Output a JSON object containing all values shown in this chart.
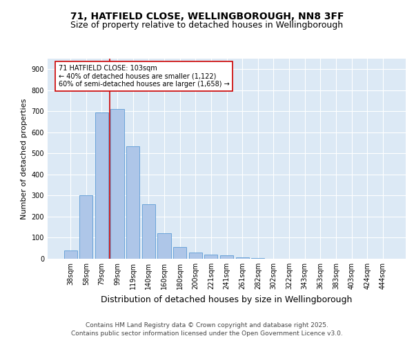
{
  "title_line1": "71, HATFIELD CLOSE, WELLINGBOROUGH, NN8 3FF",
  "title_line2": "Size of property relative to detached houses in Wellingborough",
  "xlabel": "Distribution of detached houses by size in Wellingborough",
  "ylabel": "Number of detached properties",
  "categories": [
    "38sqm",
    "58sqm",
    "79sqm",
    "99sqm",
    "119sqm",
    "140sqm",
    "160sqm",
    "180sqm",
    "200sqm",
    "221sqm",
    "241sqm",
    "261sqm",
    "282sqm",
    "302sqm",
    "322sqm",
    "343sqm",
    "363sqm",
    "383sqm",
    "403sqm",
    "424sqm",
    "444sqm"
  ],
  "values": [
    40,
    300,
    695,
    710,
    535,
    260,
    120,
    55,
    30,
    20,
    18,
    5,
    2,
    1,
    1,
    0,
    0,
    0,
    0,
    0,
    0
  ],
  "bar_color": "#aec6e8",
  "bar_edge_color": "#5b9bd5",
  "bg_color": "#dce9f5",
  "vline_x_index": 3,
  "vline_color": "#cc0000",
  "annotation_text": "71 HATFIELD CLOSE: 103sqm\n← 40% of detached houses are smaller (1,122)\n60% of semi-detached houses are larger (1,658) →",
  "annotation_box_color": "#ffffff",
  "annotation_box_edge": "#cc0000",
  "ylim": [
    0,
    950
  ],
  "yticks": [
    0,
    100,
    200,
    300,
    400,
    500,
    600,
    700,
    800,
    900
  ],
  "footer_line1": "Contains HM Land Registry data © Crown copyright and database right 2025.",
  "footer_line2": "Contains public sector information licensed under the Open Government Licence v3.0.",
  "title_fontsize": 10,
  "subtitle_fontsize": 9,
  "ylabel_fontsize": 8,
  "xlabel_fontsize": 9,
  "tick_fontsize": 7,
  "annotation_fontsize": 7,
  "footer_fontsize": 6.5
}
